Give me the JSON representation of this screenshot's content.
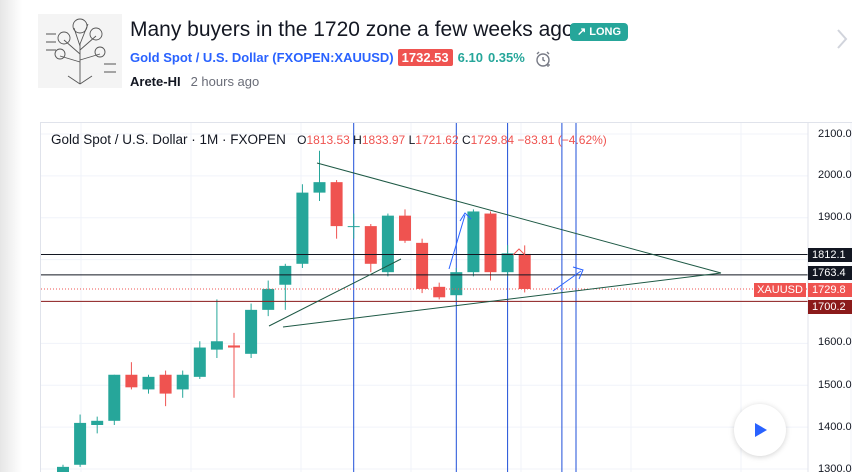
{
  "idea": {
    "title": "Many buyers in the 1720 zone a few weeks ago.",
    "badge": "↗ LONG",
    "symbol": "Gold Spot / U.S. Dollar (FXOPEN:XAUUSD)",
    "price": "1732.53",
    "change": "6.10",
    "change_pct": "0.35%",
    "author": "Arete-HI",
    "time": "2 hours ago"
  },
  "chart": {
    "legend_title": "Gold Spot / U.S. Dollar · 1M · FXOPEN",
    "o_label": "O",
    "o": "1813.53",
    "h_label": "H",
    "h": "1833.97",
    "l_label": "L",
    "l": "1721.62",
    "c_label": "C",
    "c": "1729.84",
    "chg": "−83.81 (−4.62%)",
    "axis_labels": [
      "2100.0",
      "2000.0",
      "1900.0",
      "1600.0",
      "1500.0",
      "1400.0",
      "1300.0"
    ],
    "tags": {
      "t1812": "1812.1",
      "t1763": "1763.4",
      "t1729": "1729.8",
      "t1700": "1700.2",
      "symbol": "XAUUSD"
    },
    "colors": {
      "up": "#26a69a",
      "down": "#ef5350",
      "trend": "#1e5945",
      "vline": "#1e4fd8"
    }
  },
  "chart_data": {
    "type": "candlestick",
    "interval": "1M",
    "ylim": [
      1300,
      2100
    ],
    "candles": [
      {
        "o": 1290,
        "h": 1310,
        "l": 1275,
        "c": 1305
      },
      {
        "o": 1310,
        "h": 1430,
        "l": 1305,
        "c": 1410
      },
      {
        "o": 1405,
        "h": 1425,
        "l": 1385,
        "c": 1415
      },
      {
        "o": 1415,
        "h": 1525,
        "l": 1405,
        "c": 1525
      },
      {
        "o": 1525,
        "h": 1555,
        "l": 1490,
        "c": 1495
      },
      {
        "o": 1490,
        "h": 1525,
        "l": 1480,
        "c": 1520
      },
      {
        "o": 1525,
        "h": 1535,
        "l": 1450,
        "c": 1480
      },
      {
        "o": 1490,
        "h": 1535,
        "l": 1470,
        "c": 1525
      },
      {
        "o": 1520,
        "h": 1605,
        "l": 1515,
        "c": 1590
      },
      {
        "o": 1585,
        "h": 1705,
        "l": 1565,
        "c": 1605
      },
      {
        "o": 1595,
        "h": 1625,
        "l": 1470,
        "c": 1590
      },
      {
        "o": 1575,
        "h": 1695,
        "l": 1565,
        "c": 1680
      },
      {
        "o": 1680,
        "h": 1750,
        "l": 1665,
        "c": 1730
      },
      {
        "o": 1740,
        "h": 1790,
        "l": 1680,
        "c": 1785
      },
      {
        "o": 1790,
        "h": 1980,
        "l": 1780,
        "c": 1960
      },
      {
        "o": 1960,
        "h": 2060,
        "l": 1940,
        "c": 1985
      },
      {
        "o": 1985,
        "h": 1990,
        "l": 1850,
        "c": 1880
      },
      {
        "o": 1880,
        "h": 1910,
        "l": 1850,
        "c": 1880
      },
      {
        "o": 1880,
        "h": 1885,
        "l": 1770,
        "c": 1790
      },
      {
        "o": 1770,
        "h": 1910,
        "l": 1760,
        "c": 1905
      },
      {
        "o": 1905,
        "h": 1920,
        "l": 1840,
        "c": 1845
      },
      {
        "o": 1840,
        "h": 1850,
        "l": 1720,
        "c": 1730
      },
      {
        "o": 1735,
        "h": 1745,
        "l": 1705,
        "c": 1710
      },
      {
        "o": 1715,
        "h": 1780,
        "l": 1700,
        "c": 1770
      },
      {
        "o": 1770,
        "h": 1920,
        "l": 1760,
        "c": 1915
      },
      {
        "o": 1910,
        "h": 1915,
        "l": 1750,
        "c": 1770
      },
      {
        "o": 1770,
        "h": 1835,
        "l": 1760,
        "c": 1815
      },
      {
        "o": 1813.53,
        "h": 1833.97,
        "l": 1721.62,
        "c": 1729.84
      }
    ],
    "horizontal_lines": [
      1812.1,
      1763.4,
      1729.8,
      1700.2
    ]
  }
}
